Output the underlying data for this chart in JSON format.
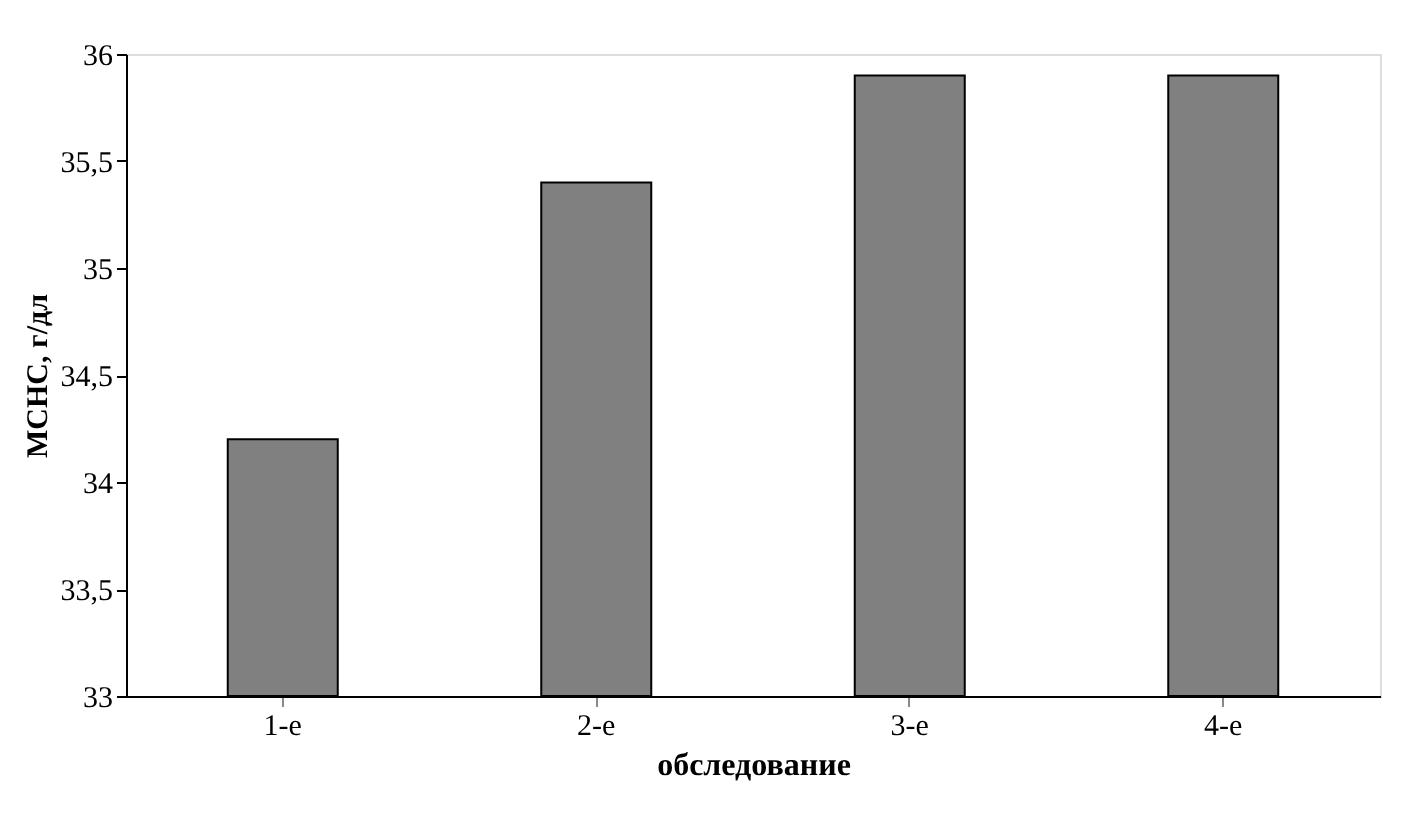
{
  "chart_data": {
    "type": "bar",
    "xlabel": "обследование",
    "ylabel": "MCHC, г/дл",
    "categories": [
      "1-е",
      "2-е",
      "3-е",
      "4-е"
    ],
    "values": [
      34.2,
      35.4,
      35.9,
      35.9
    ],
    "color": "#808080",
    "ylim": [
      33,
      36
    ],
    "yticks": [
      33,
      {
        "value": 33.5,
        "label": "33,5"
      },
      34,
      {
        "value": 34.5,
        "label": "34,5"
      },
      35,
      {
        "value": 35.5,
        "label": "35,5"
      },
      36
    ],
    "grid": false
  }
}
